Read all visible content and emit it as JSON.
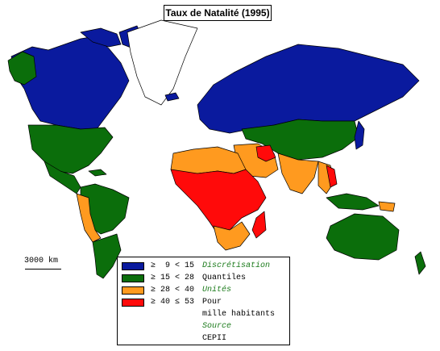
{
  "title": "Taux de Natalité (1995)",
  "scale": "3000 km",
  "colors": {
    "class1": "#0a1a9e",
    "class2": "#0b6e0b",
    "class3": "#ff9a1f",
    "class4": "#ff0a0a",
    "nodata": "#ffffff"
  },
  "legend": {
    "classes": [
      {
        "label": "≥  9 < 15",
        "color": "#0a1a9e"
      },
      {
        "label": "≥ 15 < 28",
        "color": "#0b6e0b"
      },
      {
        "label": "≥ 28 < 40",
        "color": "#ff9a1f"
      },
      {
        "label": "≥ 40 ≤ 53",
        "color": "#ff0a0a"
      }
    ],
    "notes": [
      {
        "text": "Discrétisation",
        "style": "green"
      },
      {
        "text": "Quantiles",
        "style": "plain"
      },
      {
        "text": "Unités",
        "style": "green"
      },
      {
        "text": "Pour",
        "style": "plain"
      },
      {
        "text": "mille habitants",
        "style": "plain"
      },
      {
        "text": "Source",
        "style": "green"
      },
      {
        "text": "CEPII",
        "style": "plain"
      }
    ]
  }
}
